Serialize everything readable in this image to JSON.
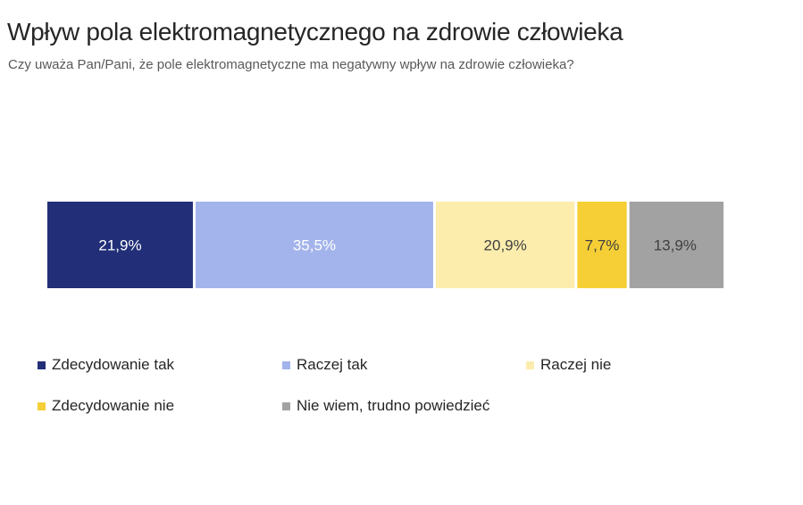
{
  "header": {
    "title": "Wpływ pola elektromagnetycznego na zdrowie człowieka",
    "subtitle": "Czy uważa Pan/Pani, że pole elektromagnetyczne ma negatywny wpływ na zdrowie człowieka?"
  },
  "chart_data": {
    "type": "bar",
    "orientation": "horizontal-stacked-100",
    "title": "Wpływ pola elektromagnetycznego na zdrowie człowieka",
    "subtitle": "Czy uważa Pan/Pani, że pole elektromagnetyczne ma negatywny wpływ na zdrowie człowieka?",
    "unit": "%",
    "grid": false,
    "legend_position": "bottom",
    "series": [
      {
        "name": "Zdecydowanie tak",
        "value": 21.9,
        "label": "21,9%",
        "color": "#222f78",
        "label_color": "#ffffff"
      },
      {
        "name": "Raczej tak",
        "value": 35.5,
        "label": "35,5%",
        "color": "#a3b4ec",
        "label_color": "#ffffff"
      },
      {
        "name": "Raczej nie",
        "value": 20.9,
        "label": "20,9%",
        "color": "#fcedad",
        "label_color": "#404040"
      },
      {
        "name": "Zdecydowanie nie",
        "value": 7.7,
        "label": "7,7%",
        "color": "#f5cf35",
        "label_color": "#404040"
      },
      {
        "name": "Nie wiem, trudno powiedzieć",
        "value": 13.9,
        "label": "13,9%",
        "color": "#a2a2a2",
        "label_color": "#404040"
      }
    ]
  }
}
